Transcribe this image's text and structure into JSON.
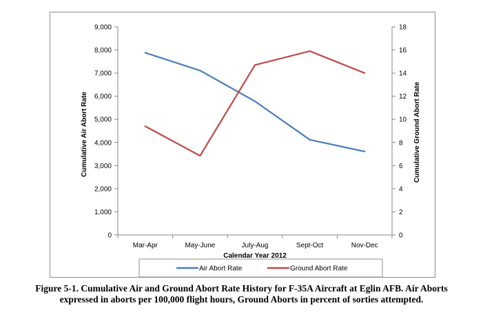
{
  "chart_data": {
    "type": "line",
    "categories": [
      "Mar-Apr",
      "May-June",
      "July-Aug",
      "Sept-Oct",
      "Nov-Dec"
    ],
    "series": [
      {
        "name": "Air Abort Rate",
        "axis": "left",
        "color": "#4a7ebb",
        "values": [
          7880,
          7110,
          5780,
          4120,
          3610
        ]
      },
      {
        "name": "Ground Abort Rate",
        "axis": "right",
        "color": "#be4b48",
        "values": [
          9.4,
          6.85,
          14.7,
          15.9,
          14.0
        ]
      }
    ],
    "xlabel": "Calendar Year 2012",
    "ylabel": "Cumulative Air Abort Rate",
    "y2label": "Cumulative Ground Abort Rate",
    "ylim": [
      0,
      9000
    ],
    "y2lim": [
      0,
      18
    ],
    "yticks": [
      "0",
      "1,000",
      "2,000",
      "3,000",
      "4,000",
      "5,000",
      "6,000",
      "7,000",
      "8,000",
      "9,000"
    ],
    "y2ticks": [
      "0",
      "2",
      "4",
      "6",
      "8",
      "10",
      "12",
      "14",
      "16",
      "18"
    ],
    "grid": false,
    "legend_position": "bottom"
  },
  "caption": {
    "line1": "Figure 5-1.  Cumulative Air and Ground Abort Rate History for F-35A Aircraft at Eglin AFB.  Air Aborts",
    "line2": "expressed in aborts per 100,000 flight hours, Ground Aborts in percent of sorties attempted."
  }
}
